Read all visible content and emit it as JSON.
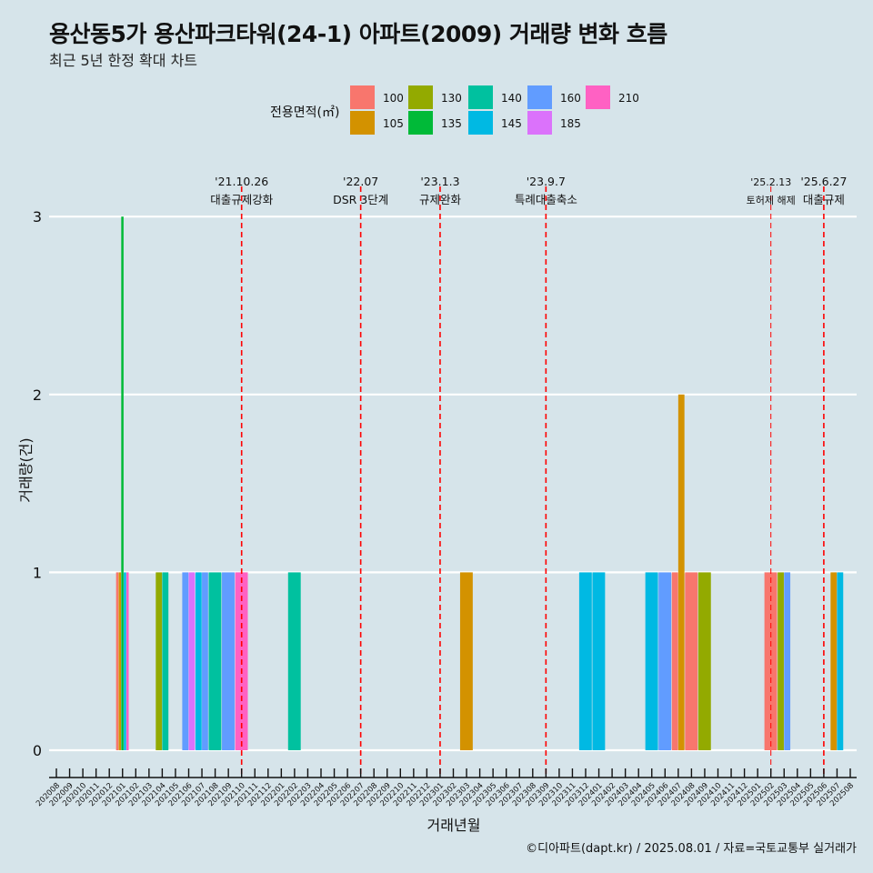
{
  "title": "용산동5가 용산파크타워(24-1) 아파트(2009) 거래량 변화 흐름",
  "subtitle": "최근 5년 한정 확대 차트",
  "caption": "©디아파트(dapt.kr) / 2025.08.01 / 자료=국토교통부 실거래가",
  "colors": {
    "background": "#d6e4ea",
    "grid": "#ffffff",
    "event_line": "#ff0000"
  },
  "chart_data": {
    "type": "bar",
    "xlabel": "거래년월",
    "ylabel": "거래량(건)",
    "ylim": [
      0,
      3
    ],
    "y_ticks": [
      0,
      1,
      2,
      3
    ],
    "grid": true,
    "legend": {
      "title": "전용면적(㎡)",
      "placement": "top",
      "entries": [
        {
          "label": "100",
          "color": "#F8766D"
        },
        {
          "label": "105",
          "color": "#D39200"
        },
        {
          "label": "130",
          "color": "#93AA00"
        },
        {
          "label": "135",
          "color": "#00BA38"
        },
        {
          "label": "140",
          "color": "#00C19F"
        },
        {
          "label": "145",
          "color": "#00B9E3"
        },
        {
          "label": "160",
          "color": "#619CFF"
        },
        {
          "label": "185",
          "color": "#DB72FB"
        },
        {
          "label": "210",
          "color": "#FF61C3"
        }
      ]
    },
    "categories": [
      "202008",
      "202009",
      "202010",
      "202011",
      "202012",
      "202101",
      "202102",
      "202103",
      "202104",
      "202105",
      "202106",
      "202107",
      "202108",
      "202109",
      "202110",
      "202111",
      "202112",
      "202201",
      "202202",
      "202203",
      "202204",
      "202205",
      "202206",
      "202207",
      "202208",
      "202209",
      "202210",
      "202211",
      "202212",
      "202301",
      "202302",
      "202303",
      "202304",
      "202305",
      "202306",
      "202307",
      "202308",
      "202309",
      "202310",
      "202311",
      "202312",
      "202401",
      "202402",
      "202403",
      "202404",
      "202405",
      "202406",
      "202407",
      "202408",
      "202409",
      "202410",
      "202411",
      "202412",
      "202501",
      "202502",
      "202503",
      "202504",
      "202505",
      "202506",
      "202507",
      "202508"
    ],
    "bars": [
      {
        "month": "202101",
        "area": "100",
        "value": 1
      },
      {
        "month": "202101",
        "area": "105",
        "value": 1
      },
      {
        "month": "202101",
        "area": "135",
        "value": 3
      },
      {
        "month": "202101",
        "area": "145",
        "value": 1
      },
      {
        "month": "202101",
        "area": "210",
        "value": 1
      },
      {
        "month": "202104",
        "area": "130",
        "value": 1
      },
      {
        "month": "202104",
        "area": "140",
        "value": 1
      },
      {
        "month": "202106",
        "area": "160",
        "value": 1
      },
      {
        "month": "202106",
        "area": "185",
        "value": 1
      },
      {
        "month": "202107",
        "area": "145",
        "value": 1
      },
      {
        "month": "202107",
        "area": "160",
        "value": 1
      },
      {
        "month": "202108",
        "area": "140",
        "value": 1
      },
      {
        "month": "202109",
        "area": "160",
        "value": 1
      },
      {
        "month": "202110",
        "area": "210",
        "value": 1
      },
      {
        "month": "202202",
        "area": "140",
        "value": 1
      },
      {
        "month": "202303",
        "area": "105",
        "value": 1
      },
      {
        "month": "202312",
        "area": "145",
        "value": 1
      },
      {
        "month": "202401",
        "area": "145",
        "value": 1
      },
      {
        "month": "202405",
        "area": "145",
        "value": 1
      },
      {
        "month": "202406",
        "area": "160",
        "value": 1
      },
      {
        "month": "202407",
        "area": "100",
        "value": 1
      },
      {
        "month": "202407",
        "area": "105",
        "value": 2
      },
      {
        "month": "202408",
        "area": "100",
        "value": 1
      },
      {
        "month": "202409",
        "area": "130",
        "value": 1
      },
      {
        "month": "202502",
        "area": "100",
        "value": 1
      },
      {
        "month": "202503",
        "area": "130",
        "value": 1
      },
      {
        "month": "202503",
        "area": "160",
        "value": 1
      },
      {
        "month": "202507",
        "area": "105",
        "value": 1
      },
      {
        "month": "202507",
        "area": "145",
        "value": 1
      }
    ],
    "events": [
      {
        "month": "202110",
        "date": "'21.10.26",
        "label": "대출규제강화",
        "style": "thick"
      },
      {
        "month": "202207",
        "date": "'22.07",
        "label": "DSR 3단계",
        "style": "thick"
      },
      {
        "month": "202301",
        "date": "'23.1.3",
        "label": "규제완화",
        "style": "thick"
      },
      {
        "month": "202309",
        "date": "'23.9.7",
        "label": "특례대출축소",
        "style": "thick"
      },
      {
        "month": "202502",
        "date": "'25.2.13",
        "label": "토허제 해제",
        "style": "thin"
      },
      {
        "month": "202506",
        "date": "'25.6.27",
        "label": "대출규제",
        "style": "thick"
      }
    ]
  }
}
